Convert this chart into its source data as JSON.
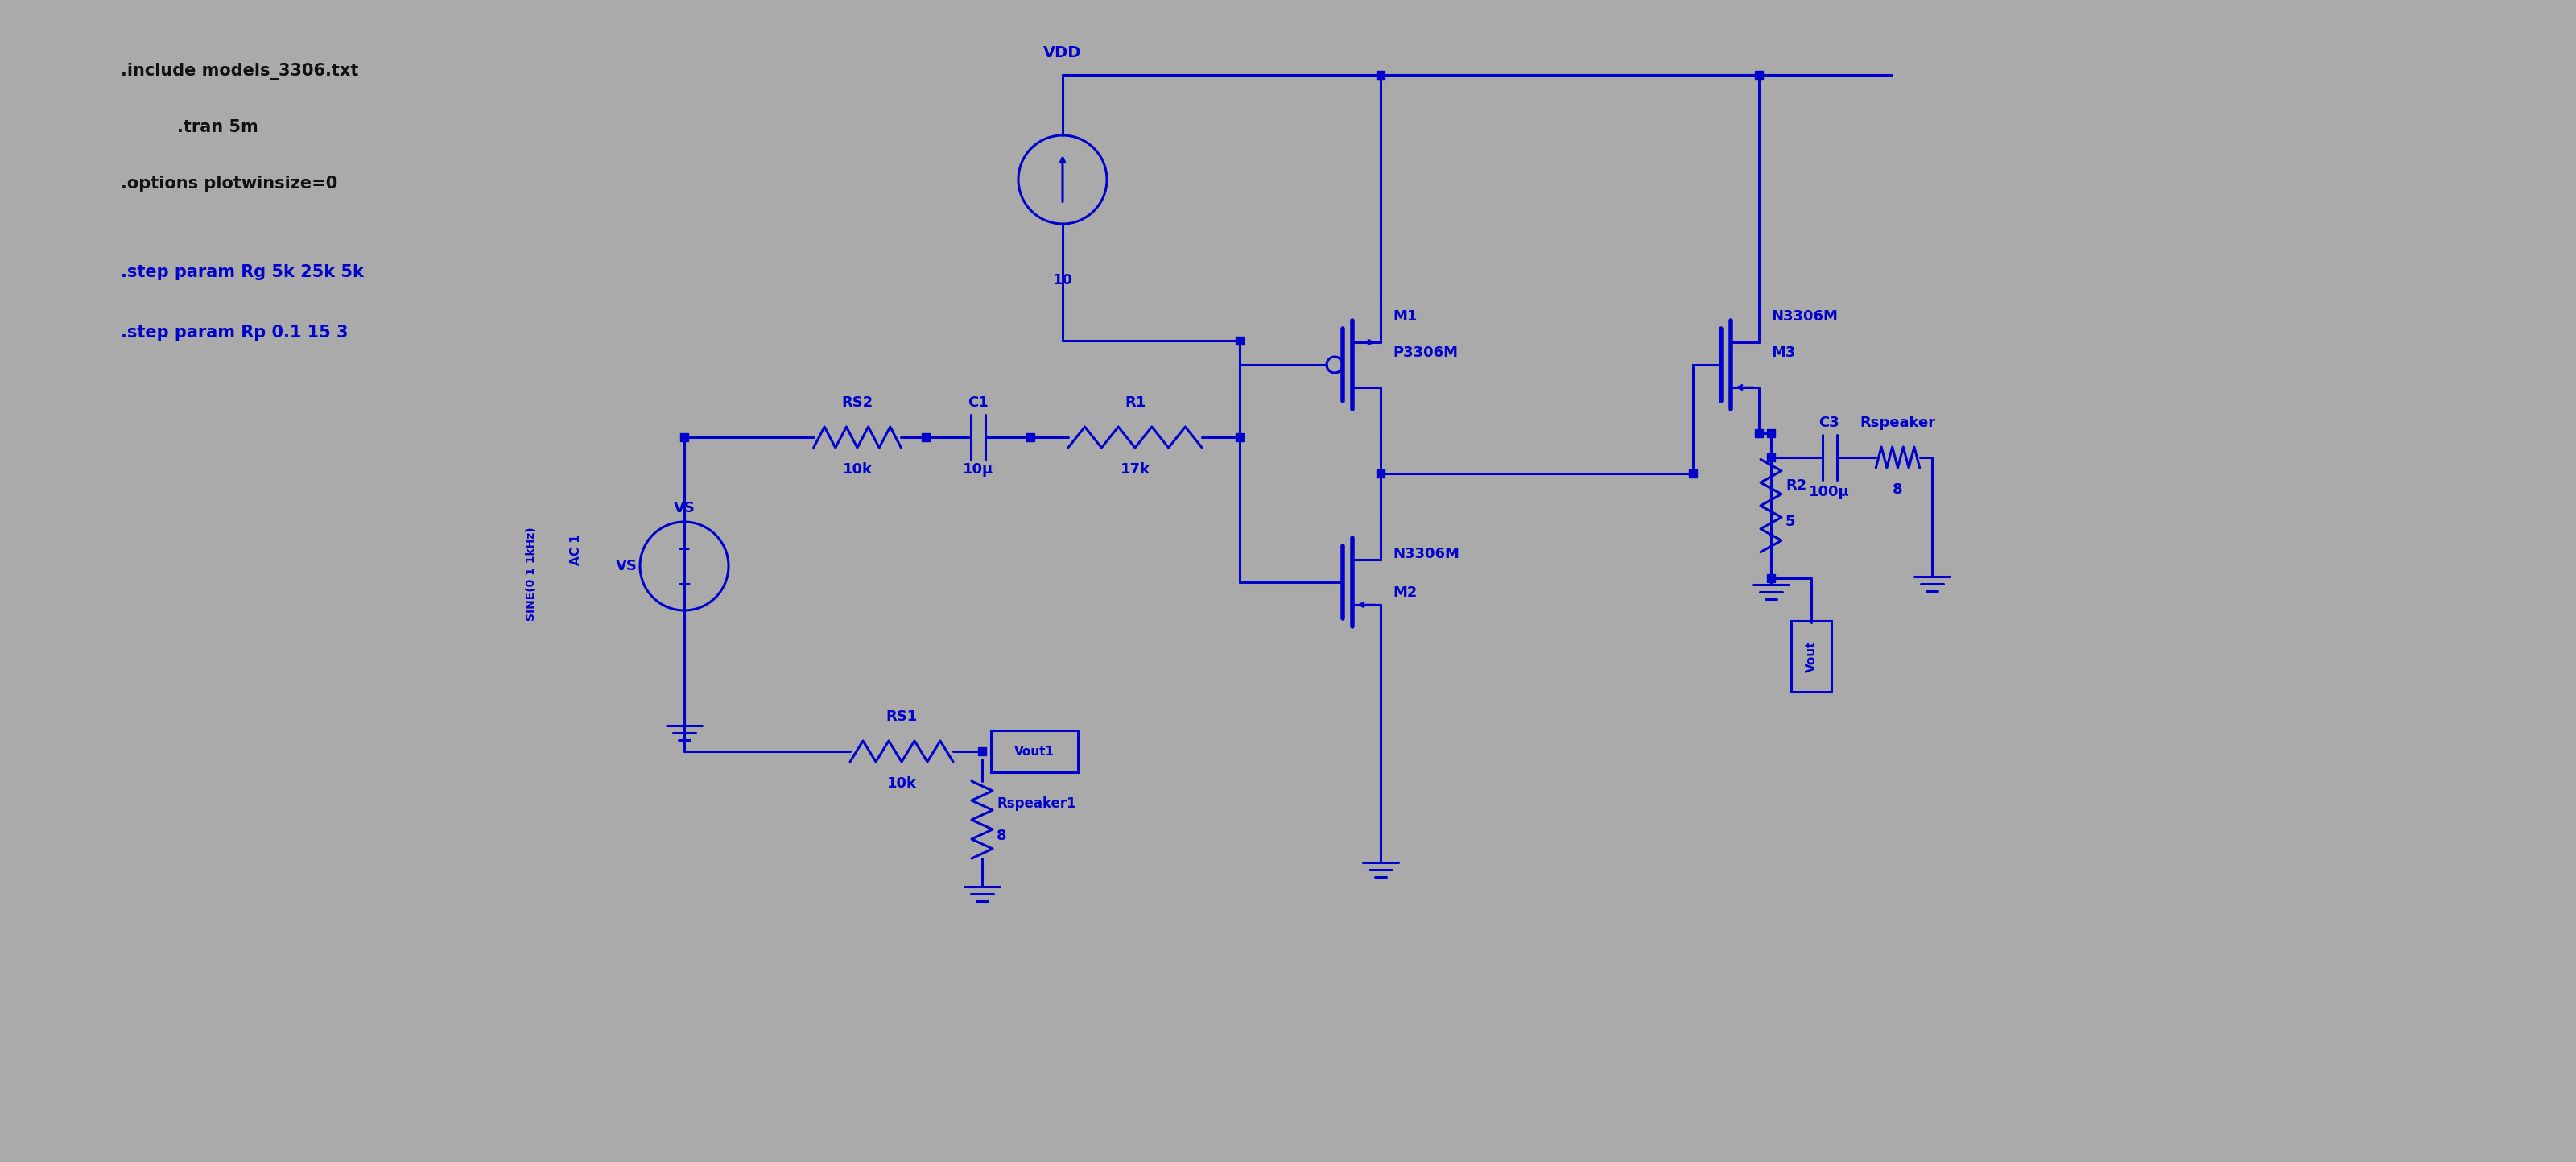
{
  "bg_color": "#AAAAAA",
  "wire_color": "#0000CC",
  "dot_color": "#0000CC",
  "text_black": "#111111",
  "text_blue": "#0000CC",
  "lw": 2.2,
  "info_lines": [
    [
      ".include models_3306.txt",
      "black"
    ],
    [
      ".tran 5m",
      "black"
    ],
    [
      ".options plotwinsize=0",
      "black"
    ],
    [
      ".step param Rg 5k 25k 5k",
      "blue"
    ],
    [
      ".step param Rp 0.1 15 3",
      "blue"
    ]
  ]
}
